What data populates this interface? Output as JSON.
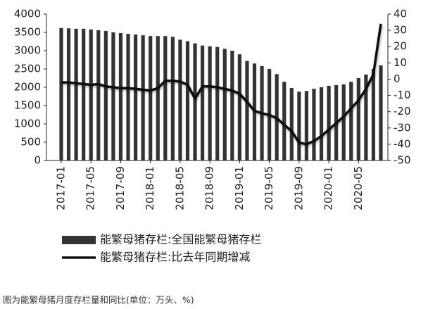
{
  "chart_data": {
    "type": "bar_line",
    "categories": [
      "2017-01",
      null,
      null,
      null,
      "2017-05",
      null,
      null,
      null,
      "2017-09",
      null,
      null,
      null,
      "2018-01",
      null,
      null,
      null,
      "2018-05",
      null,
      null,
      null,
      "2018-09",
      null,
      null,
      null,
      "2019-01",
      null,
      null,
      null,
      "2019-05",
      null,
      null,
      null,
      "2019-09",
      null,
      null,
      null,
      "2020-01",
      null,
      null,
      null,
      "2020-05",
      null,
      null,
      null
    ],
    "series": [
      {
        "name": "能繁母猪存栏:全国能繁母猪存栏",
        "type": "bar",
        "color": "#333333",
        "values": [
          3620,
          3610,
          3600,
          3600,
          3580,
          3560,
          3540,
          3500,
          3480,
          3460,
          3440,
          3420,
          3400,
          3400,
          3400,
          3380,
          3300,
          3260,
          3200,
          3140,
          3120,
          3100,
          3050,
          3000,
          2900,
          2720,
          2650,
          2580,
          2500,
          2360,
          2150,
          1980,
          1880,
          1900,
          1960,
          2000,
          2040,
          2060,
          2080,
          2150,
          2250,
          2350,
          2500,
          2600
        ]
      },
      {
        "name": "能繁母猪存栏:比去年同期增减",
        "type": "line",
        "color": "#111111",
        "axis": "y2",
        "values": [
          -2,
          -2,
          -2.5,
          -3,
          -3.5,
          -3,
          -4.5,
          -5,
          -5.5,
          -5.5,
          -6,
          -6.5,
          -7,
          -5.5,
          -1,
          -1,
          -1.5,
          -3.5,
          -12,
          -4.5,
          -4.5,
          -5,
          -6,
          -7,
          -9,
          -14,
          -19.5,
          -21,
          -22,
          -24,
          -28,
          -32,
          -39,
          -40,
          -38,
          -35,
          -31,
          -27,
          -23,
          -18,
          -13,
          -6,
          3,
          34
        ]
      }
    ],
    "ylim": [
      0,
      4000
    ],
    "yticks": [
      0,
      500,
      1000,
      1500,
      2000,
      2500,
      3000,
      3500,
      4000
    ],
    "y2lim": [
      -50,
      40
    ],
    "y2ticks": [
      -50,
      -40,
      -30,
      -20,
      -10,
      0,
      10,
      20,
      30,
      40
    ],
    "caption": "图为能繁母猪月度存栏量和同比(单位：万头、%)"
  }
}
